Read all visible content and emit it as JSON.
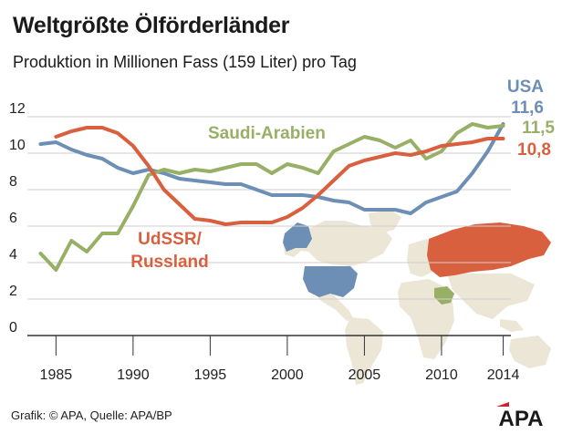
{
  "title": "Weltgrößte Ölförderländer",
  "subtitle": "Produktion in Millionen Fass (159 Liter) pro Tag",
  "footer": {
    "source": "Grafik: © APA, Quelle: APA/BP",
    "logo_text": "APA",
    "logo_color": "#cc2229"
  },
  "colors": {
    "usa": "#6e8fb5",
    "saudi": "#98b066",
    "russia": "#d9603f",
    "map_land": "#ece6d6",
    "grid": "#cfcfcf",
    "axis": "#333333"
  },
  "map": {
    "description_icons": [
      "world-map",
      "usa-highlight",
      "russia-highlight",
      "saudi-arabia-highlight"
    ]
  },
  "chart_data": {
    "type": "line",
    "title": "Weltgrößte Ölförderländer",
    "subtitle": "Produktion in Millionen Fass (159 Liter) pro Tag",
    "xlabel": "",
    "ylabel": "",
    "xlim": [
      1983.5,
      2014.5
    ],
    "ylim": [
      0,
      12
    ],
    "x_ticks": [
      1985,
      1990,
      1995,
      2000,
      2005,
      2010,
      2014
    ],
    "x_tick_labels": [
      "1985",
      "1990",
      "1995",
      "2000",
      "2005",
      "2010",
      "2014"
    ],
    "y_ticks": [
      0,
      2,
      4,
      6,
      8,
      10,
      12
    ],
    "y_tick_labels": [
      "0",
      "2",
      "4",
      "6",
      "8",
      "10",
      "12"
    ],
    "grid": true,
    "series": [
      {
        "name": "USA",
        "end_label": "11,6",
        "color": "#6e8fb5",
        "points": [
          [
            1984,
            10.5
          ],
          [
            1985,
            10.6
          ],
          [
            1986,
            10.2
          ],
          [
            1987,
            9.9
          ],
          [
            1988,
            9.7
          ],
          [
            1989,
            9.2
          ],
          [
            1990,
            8.9
          ],
          [
            1991,
            9.1
          ],
          [
            1992,
            8.9
          ],
          [
            1993,
            8.6
          ],
          [
            1994,
            8.5
          ],
          [
            1995,
            8.4
          ],
          [
            1996,
            8.3
          ],
          [
            1997,
            8.3
          ],
          [
            1998,
            8.0
          ],
          [
            1999,
            7.7
          ],
          [
            2000,
            7.7
          ],
          [
            2001,
            7.7
          ],
          [
            2002,
            7.6
          ],
          [
            2003,
            7.4
          ],
          [
            2004,
            7.3
          ],
          [
            2005,
            6.9
          ],
          [
            2006,
            6.9
          ],
          [
            2007,
            6.9
          ],
          [
            2008,
            6.7
          ],
          [
            2009,
            7.3
          ],
          [
            2010,
            7.6
          ],
          [
            2011,
            7.9
          ],
          [
            2012,
            8.9
          ],
          [
            2013,
            10.1
          ],
          [
            2014,
            11.6
          ]
        ]
      },
      {
        "name": "Saudi-Arabien",
        "end_label": "11,5",
        "color": "#98b066",
        "points": [
          [
            1984,
            4.5
          ],
          [
            1985,
            3.6
          ],
          [
            1986,
            5.2
          ],
          [
            1987,
            4.6
          ],
          [
            1988,
            5.6
          ],
          [
            1989,
            5.6
          ],
          [
            1990,
            7.1
          ],
          [
            1991,
            8.8
          ],
          [
            1992,
            9.1
          ],
          [
            1993,
            8.9
          ],
          [
            1994,
            9.1
          ],
          [
            1995,
            9.0
          ],
          [
            1996,
            9.2
          ],
          [
            1997,
            9.4
          ],
          [
            1998,
            9.4
          ],
          [
            1999,
            8.9
          ],
          [
            2000,
            9.4
          ],
          [
            2001,
            9.2
          ],
          [
            2002,
            8.9
          ],
          [
            2003,
            10.1
          ],
          [
            2004,
            10.5
          ],
          [
            2005,
            10.9
          ],
          [
            2006,
            10.7
          ],
          [
            2007,
            10.3
          ],
          [
            2008,
            10.7
          ],
          [
            2009,
            9.7
          ],
          [
            2010,
            10.1
          ],
          [
            2011,
            11.1
          ],
          [
            2012,
            11.6
          ],
          [
            2013,
            11.4
          ],
          [
            2014,
            11.5
          ]
        ]
      },
      {
        "name": "UdSSR/ Russland",
        "end_label": "10,8",
        "color": "#d9603f",
        "points": [
          [
            1985,
            10.9
          ],
          [
            1986,
            11.2
          ],
          [
            1987,
            11.4
          ],
          [
            1988,
            11.4
          ],
          [
            1989,
            11.1
          ],
          [
            1990,
            10.4
          ],
          [
            1991,
            9.3
          ],
          [
            1992,
            8.0
          ],
          [
            1993,
            7.2
          ],
          [
            1994,
            6.4
          ],
          [
            1995,
            6.3
          ],
          [
            1996,
            6.1
          ],
          [
            1997,
            6.2
          ],
          [
            1998,
            6.2
          ],
          [
            1999,
            6.2
          ],
          [
            2000,
            6.5
          ],
          [
            2001,
            7.0
          ],
          [
            2002,
            7.7
          ],
          [
            2003,
            8.5
          ],
          [
            2004,
            9.3
          ],
          [
            2005,
            9.6
          ],
          [
            2006,
            9.8
          ],
          [
            2007,
            10.0
          ],
          [
            2008,
            9.9
          ],
          [
            2009,
            10.1
          ],
          [
            2010,
            10.4
          ],
          [
            2011,
            10.5
          ],
          [
            2012,
            10.6
          ],
          [
            2013,
            10.8
          ],
          [
            2014,
            10.8
          ]
        ]
      }
    ]
  }
}
